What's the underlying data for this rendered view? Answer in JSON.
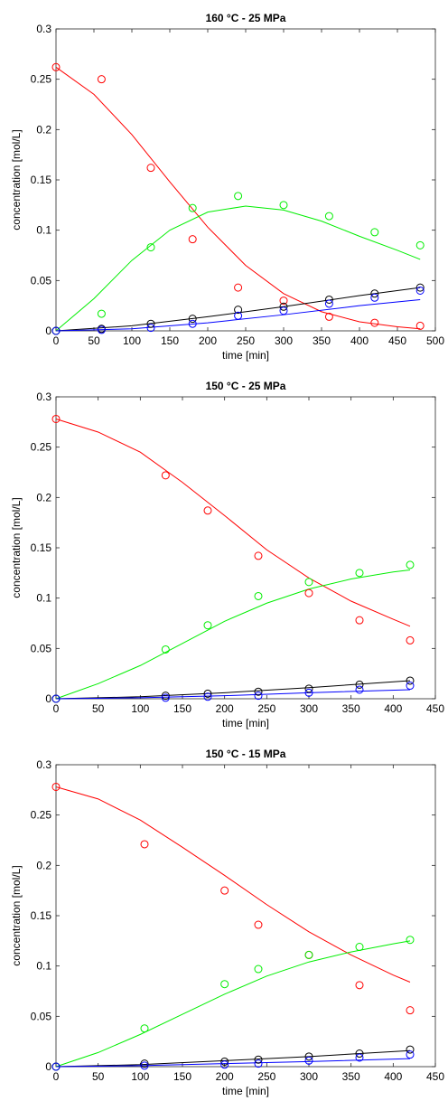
{
  "chart_data": [
    {
      "type": "scatter",
      "title": "160 °C - 25 MPa",
      "xlabel": "time [min]",
      "ylabel": "concentration [mol/L]",
      "xlim": [
        0,
        500
      ],
      "ylim": [
        0,
        0.3
      ],
      "xticks": [
        "0",
        "50",
        "100",
        "150",
        "200",
        "250",
        "300",
        "350",
        "400",
        "450",
        "500"
      ],
      "yticks": [
        "0",
        "0.05",
        "0.1",
        "0.15",
        "0.2",
        "0.25",
        "0.3"
      ],
      "grid": false,
      "series": [
        {
          "color": "#ff0000",
          "kind": "points",
          "x": [
            0,
            60,
            125,
            180,
            240,
            300,
            360,
            420,
            480
          ],
          "y": [
            0.262,
            0.25,
            0.162,
            0.091,
            0.043,
            0.03,
            0.014,
            0.008,
            0.005
          ]
        },
        {
          "color": "#00ee00",
          "kind": "points",
          "x": [
            0,
            60,
            125,
            180,
            240,
            300,
            360,
            420,
            480
          ],
          "y": [
            0,
            0.017,
            0.083,
            0.122,
            0.134,
            0.125,
            0.114,
            0.098,
            0.085
          ]
        },
        {
          "color": "#000000",
          "kind": "points",
          "x": [
            0,
            60,
            125,
            180,
            240,
            300,
            360,
            420,
            480
          ],
          "y": [
            0,
            0.002,
            0.007,
            0.012,
            0.021,
            0.024,
            0.031,
            0.037,
            0.043
          ]
        },
        {
          "color": "#0000ff",
          "kind": "points",
          "x": [
            0,
            60,
            125,
            180,
            240,
            300,
            360,
            420,
            480
          ],
          "y": [
            0,
            0.001,
            0.003,
            0.007,
            0.015,
            0.02,
            0.027,
            0.033,
            0.04
          ]
        },
        {
          "color": "#ff0000",
          "kind": "line",
          "x": [
            0,
            50,
            100,
            150,
            200,
            250,
            300,
            350,
            400,
            450,
            480
          ],
          "y": [
            0.262,
            0.235,
            0.195,
            0.148,
            0.103,
            0.065,
            0.037,
            0.019,
            0.009,
            0.004,
            0.002
          ]
        },
        {
          "color": "#00ee00",
          "kind": "line",
          "x": [
            0,
            50,
            100,
            150,
            200,
            250,
            300,
            350,
            400,
            450,
            480
          ],
          "y": [
            0,
            0.032,
            0.07,
            0.1,
            0.118,
            0.124,
            0.12,
            0.109,
            0.094,
            0.08,
            0.071
          ]
        },
        {
          "color": "#000000",
          "kind": "line",
          "x": [
            0,
            100,
            200,
            300,
            400,
            480
          ],
          "y": [
            0,
            0.005,
            0.014,
            0.024,
            0.035,
            0.043
          ]
        },
        {
          "color": "#0000ff",
          "kind": "line",
          "x": [
            0,
            100,
            200,
            300,
            400,
            480
          ],
          "y": [
            0,
            0.002,
            0.008,
            0.016,
            0.025,
            0.031
          ]
        }
      ]
    },
    {
      "type": "scatter",
      "title": "150 °C - 25 MPa",
      "xlabel": "time [min]",
      "ylabel": "concentration [mol/L]",
      "xlim": [
        0,
        450
      ],
      "ylim": [
        0,
        0.3
      ],
      "xticks": [
        "0",
        "50",
        "100",
        "150",
        "200",
        "250",
        "300",
        "350",
        "400",
        "450"
      ],
      "yticks": [
        "0",
        "0.05",
        "0.1",
        "0.15",
        "0.2",
        "0.25",
        "0.3"
      ],
      "grid": false,
      "series": [
        {
          "color": "#ff0000",
          "kind": "points",
          "x": [
            0,
            130,
            180,
            240,
            300,
            360,
            420
          ],
          "y": [
            0.278,
            0.222,
            0.187,
            0.142,
            0.105,
            0.078,
            0.058
          ]
        },
        {
          "color": "#00ee00",
          "kind": "points",
          "x": [
            0,
            130,
            180,
            240,
            300,
            360,
            420
          ],
          "y": [
            0,
            0.049,
            0.073,
            0.102,
            0.116,
            0.125,
            0.133
          ]
        },
        {
          "color": "#000000",
          "kind": "points",
          "x": [
            0,
            130,
            180,
            240,
            300,
            360,
            420
          ],
          "y": [
            0,
            0.003,
            0.005,
            0.007,
            0.01,
            0.014,
            0.018
          ]
        },
        {
          "color": "#0000ff",
          "kind": "points",
          "x": [
            0,
            130,
            180,
            240,
            300,
            360,
            420
          ],
          "y": [
            0,
            0.001,
            0.002,
            0.003,
            0.006,
            0.009,
            0.013
          ]
        },
        {
          "color": "#ff0000",
          "kind": "line",
          "x": [
            0,
            50,
            100,
            150,
            200,
            250,
            300,
            350,
            400,
            420
          ],
          "y": [
            0.278,
            0.265,
            0.245,
            0.215,
            0.182,
            0.148,
            0.12,
            0.097,
            0.079,
            0.072
          ]
        },
        {
          "color": "#00ee00",
          "kind": "line",
          "x": [
            0,
            50,
            100,
            150,
            200,
            250,
            300,
            350,
            400,
            420
          ],
          "y": [
            0,
            0.015,
            0.033,
            0.055,
            0.077,
            0.095,
            0.109,
            0.119,
            0.126,
            0.128
          ]
        },
        {
          "color": "#000000",
          "kind": "line",
          "x": [
            0,
            100,
            200,
            300,
            420
          ],
          "y": [
            0,
            0.002,
            0.006,
            0.011,
            0.018
          ]
        },
        {
          "color": "#0000ff",
          "kind": "line",
          "x": [
            0,
            100,
            200,
            300,
            420
          ],
          "y": [
            0,
            0.001,
            0.003,
            0.006,
            0.009
          ]
        }
      ]
    },
    {
      "type": "scatter",
      "title": "150 °C - 15 MPa",
      "xlabel": "time [min]",
      "ylabel": "concentration [mol/L]",
      "xlim": [
        0,
        450
      ],
      "ylim": [
        0,
        0.3
      ],
      "xticks": [
        "0",
        "50",
        "100",
        "150",
        "200",
        "250",
        "300",
        "350",
        "400",
        "450"
      ],
      "yticks": [
        "0",
        "0.05",
        "0.1",
        "0.15",
        "0.2",
        "0.25",
        "0.3"
      ],
      "grid": false,
      "series": [
        {
          "color": "#ff0000",
          "kind": "points",
          "x": [
            0,
            105,
            200,
            240,
            300,
            360,
            420
          ],
          "y": [
            0.278,
            0.221,
            0.175,
            0.141,
            0.111,
            0.081,
            0.056
          ]
        },
        {
          "color": "#00ee00",
          "kind": "points",
          "x": [
            0,
            105,
            200,
            240,
            300,
            360,
            420
          ],
          "y": [
            0,
            0.038,
            0.082,
            0.097,
            0.111,
            0.119,
            0.126
          ]
        },
        {
          "color": "#000000",
          "kind": "points",
          "x": [
            0,
            105,
            200,
            240,
            300,
            360,
            420
          ],
          "y": [
            0,
            0.003,
            0.005,
            0.007,
            0.01,
            0.013,
            0.017
          ]
        },
        {
          "color": "#0000ff",
          "kind": "points",
          "x": [
            0,
            105,
            200,
            240,
            300,
            360,
            420
          ],
          "y": [
            0,
            0.001,
            0.002,
            0.003,
            0.006,
            0.009,
            0.012
          ]
        },
        {
          "color": "#ff0000",
          "kind": "line",
          "x": [
            0,
            50,
            100,
            150,
            200,
            250,
            300,
            350,
            400,
            420
          ],
          "y": [
            0.278,
            0.266,
            0.245,
            0.218,
            0.19,
            0.161,
            0.134,
            0.111,
            0.091,
            0.084
          ]
        },
        {
          "color": "#00ee00",
          "kind": "line",
          "x": [
            0,
            50,
            100,
            150,
            200,
            250,
            300,
            350,
            400,
            420
          ],
          "y": [
            0,
            0.014,
            0.032,
            0.052,
            0.072,
            0.09,
            0.104,
            0.114,
            0.122,
            0.125
          ]
        },
        {
          "color": "#000000",
          "kind": "line",
          "x": [
            0,
            100,
            200,
            300,
            420
          ],
          "y": [
            0,
            0.002,
            0.006,
            0.01,
            0.016
          ]
        },
        {
          "color": "#0000ff",
          "kind": "line",
          "x": [
            0,
            100,
            200,
            300,
            420
          ],
          "y": [
            0,
            0.001,
            0.003,
            0.005,
            0.008
          ]
        }
      ]
    }
  ]
}
